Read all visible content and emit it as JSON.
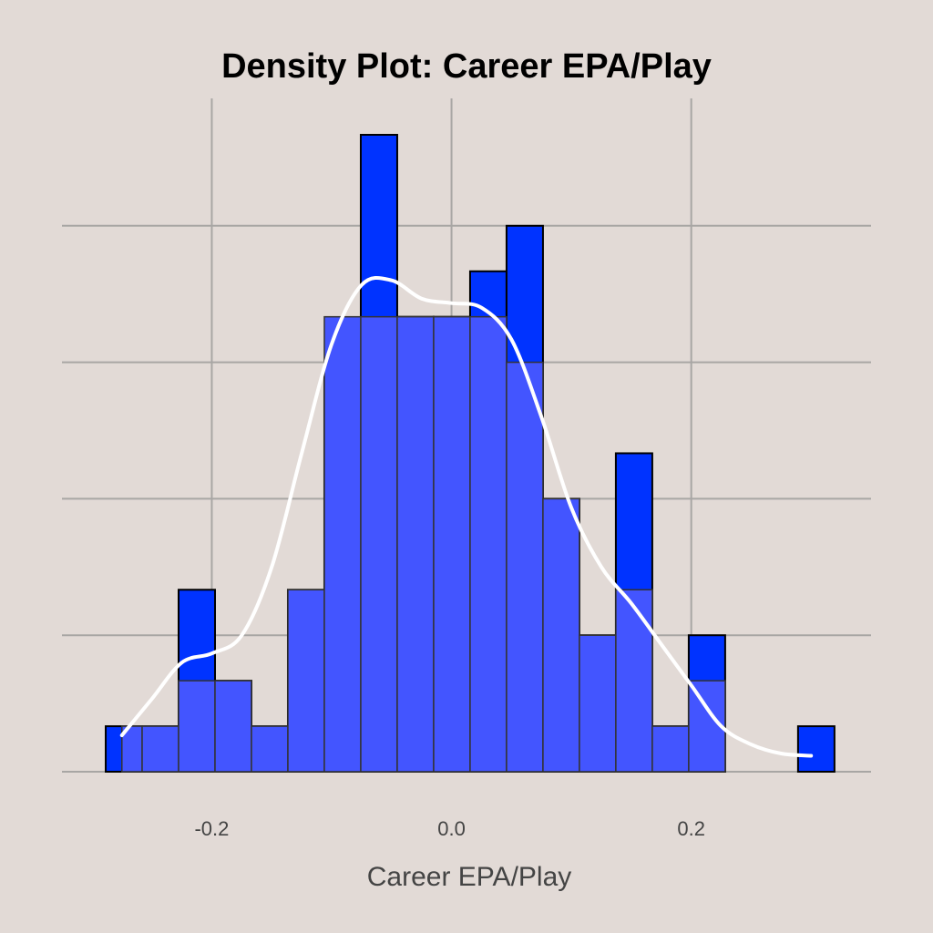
{
  "chart_data": {
    "type": "histogram",
    "title": "Density Plot: Career EPA/Play",
    "xlabel": "Career EPA/Play",
    "ylabel": "",
    "xlim": [
      -0.325,
      0.35
    ],
    "ylim": [
      0,
      14.8
    ],
    "x_ticks": [
      -0.2,
      0.0,
      0.2
    ],
    "x_tick_labels": [
      "-0.2",
      "0.0",
      "0.2"
    ],
    "y_gridlines": [
      0,
      3,
      6,
      9,
      12
    ],
    "y_tick_labels_shown": false,
    "grid": true,
    "bin_width": 0.0304,
    "bins_start": [
      -0.2885,
      -0.2581,
      -0.2277,
      -0.1973,
      -0.1669,
      -0.1365,
      -0.1061,
      -0.0757,
      -0.0453,
      -0.0149,
      0.0155,
      0.0459,
      0.0763,
      0.1067,
      0.1371,
      0.1675,
      0.1979,
      0.2283,
      0.2587,
      0.2891
    ],
    "series": [
      {
        "role": "count_histogram",
        "color": "#0033ff",
        "values": [
          1,
          1,
          4,
          2,
          1,
          4,
          9,
          14,
          10,
          10,
          11,
          12,
          6,
          3,
          7,
          1,
          3,
          0,
          0,
          1
        ]
      },
      {
        "role": "overlay_histogram",
        "color": "#4355ff",
        "values": [
          1,
          1,
          2,
          2,
          1,
          4,
          10,
          10,
          10,
          10,
          10,
          9,
          6,
          3,
          4,
          1,
          2,
          0,
          0,
          0
        ]
      },
      {
        "role": "density_curve",
        "color": "#ffffff",
        "x": [
          -0.275,
          -0.25,
          -0.225,
          -0.2,
          -0.175,
          -0.15,
          -0.125,
          -0.1,
          -0.075,
          -0.05,
          -0.025,
          0.0,
          0.025,
          0.05,
          0.075,
          0.1,
          0.125,
          0.15,
          0.175,
          0.2,
          0.225,
          0.25,
          0.275,
          0.3
        ],
        "y": [
          0.8,
          1.6,
          2.4,
          2.6,
          3.0,
          4.5,
          7.0,
          9.4,
          10.7,
          10.8,
          10.4,
          10.3,
          10.2,
          9.5,
          7.8,
          5.8,
          4.5,
          3.7,
          2.8,
          1.9,
          1.0,
          0.6,
          0.4,
          0.35
        ]
      }
    ]
  },
  "colors": {
    "background": "#e2dad6",
    "grid": "#a8a6a4",
    "tick_text": "#444444",
    "bar_full": "#0033ff",
    "bar_overlay": "#4355ff",
    "density_curve": "#ffffff"
  }
}
